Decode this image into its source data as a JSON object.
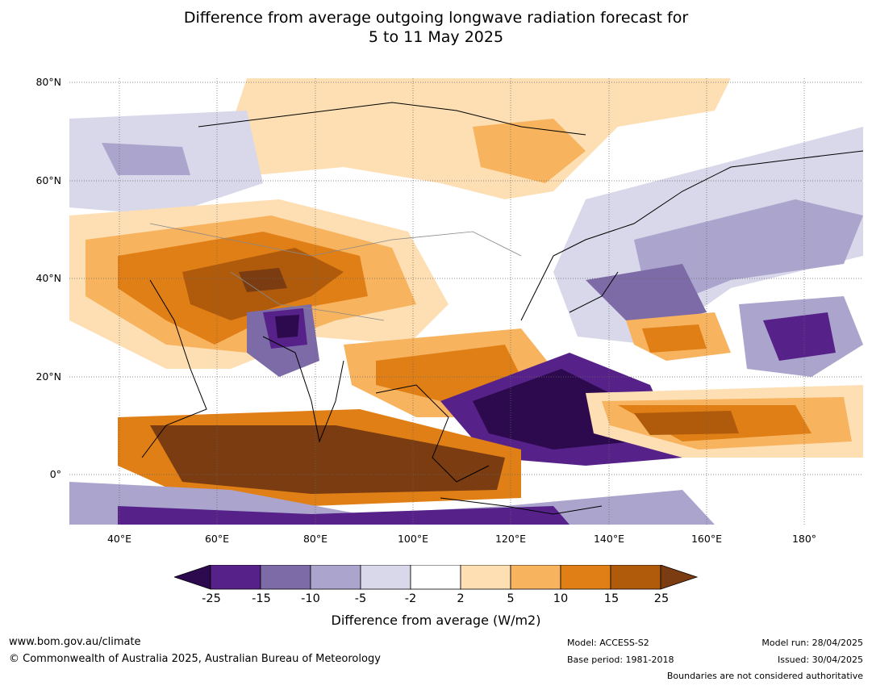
{
  "title_line1": "Difference from average outgoing longwave radiation forecast for",
  "title_line2": "5 to 11 May 2025",
  "lat_labels": [
    "80°N",
    "60°N",
    "40°N",
    "20°N",
    "0°"
  ],
  "lon_labels": [
    "40°E",
    "60°E",
    "80°E",
    "100°E",
    "120°E",
    "140°E",
    "160°E",
    "180°"
  ],
  "colorbar": {
    "ticks": [
      "-25",
      "-15",
      "-10",
      "-5",
      "-2",
      "2",
      "5",
      "10",
      "15",
      "25"
    ],
    "colors": [
      "#2d0a4e",
      "#56228a",
      "#7d6ba8",
      "#aba5cd",
      "#d8d8ea",
      "#ffffff",
      "#fddfb3",
      "#f8b35f",
      "#df7f16",
      "#b05a0c",
      "#7a3c10"
    ],
    "label": "Difference from average (W/m2)"
  },
  "footer": {
    "url": "www.bom.gov.au/climate",
    "copyright": "© Commonwealth of Australia 2025, Australian Bureau of Meteorology",
    "model": "Model: ACCESS-S2",
    "base_period": "Base period: 1981-2018",
    "model_run": "Model run: 28/04/2025",
    "issued": "Issued: 30/04/2025",
    "disclaimer": "Boundaries are not considered authoritative"
  }
}
